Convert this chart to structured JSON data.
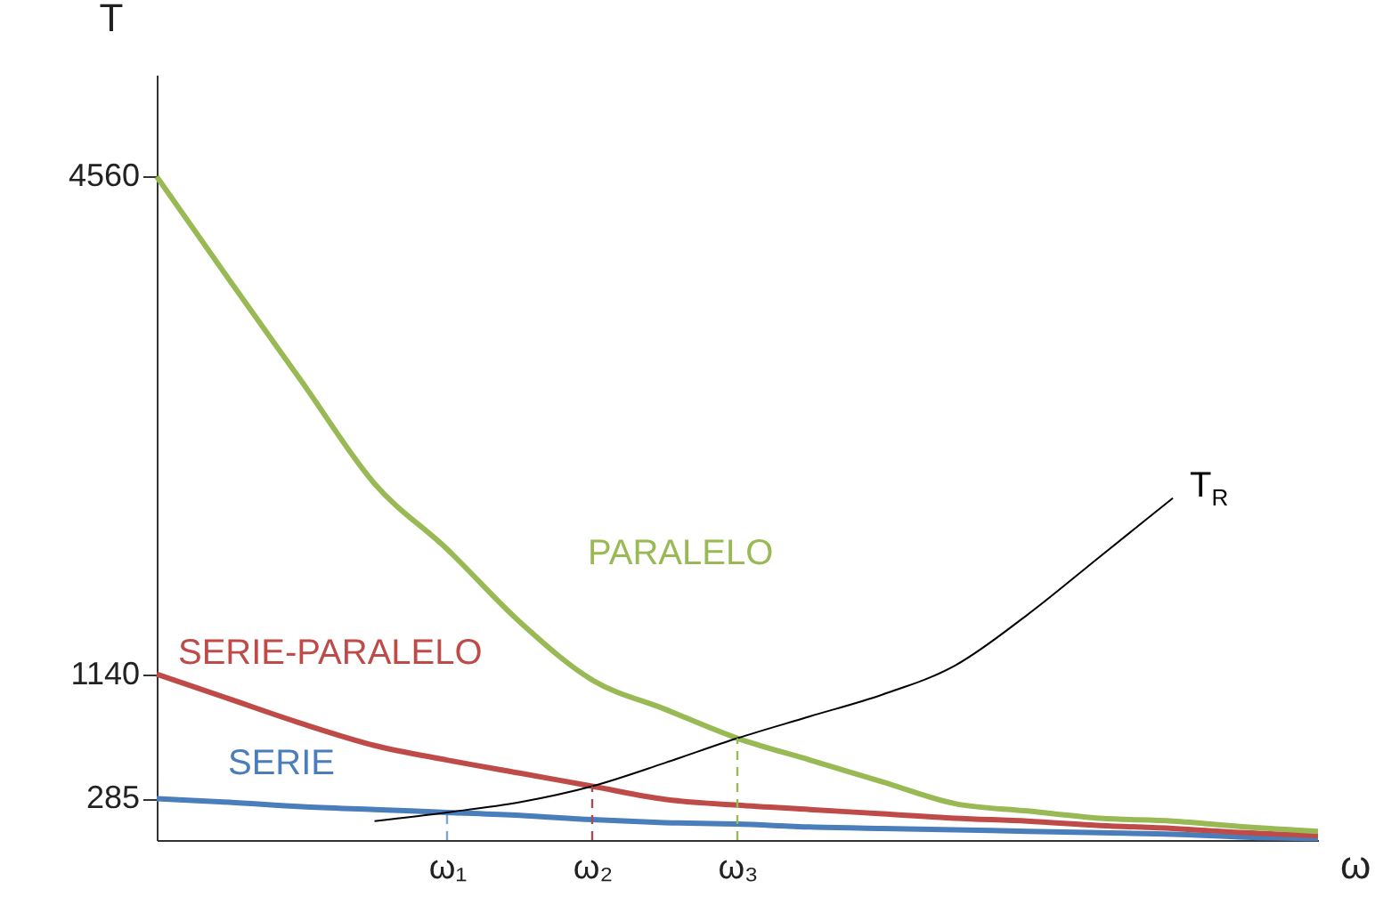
{
  "chart_data": {
    "type": "line",
    "xlabel": "ω",
    "ylabel": "T",
    "categories": [
      null,
      null,
      null,
      null,
      "ω₁",
      null,
      "ω₂",
      null,
      "ω₃",
      null,
      null,
      null,
      null,
      null,
      null,
      null,
      null
    ],
    "ylim": [
      0,
      5260
    ],
    "yticks": [
      285,
      1140,
      4560
    ],
    "grid": false,
    "legend": false,
    "marker": "none",
    "series": [
      {
        "name": "SERIE",
        "color": "#4a7ebb",
        "values": [
          285,
          260,
          230,
          210,
          190,
          170,
          140,
          120,
          110,
          90,
          80,
          70,
          60,
          50,
          40,
          20,
          10
        ]
      },
      {
        "name": "SERIE-PARALELO",
        "color": "#be4b48",
        "values": [
          1140,
          970,
          800,
          650,
          550,
          460,
          370,
          280,
          240,
          210,
          180,
          150,
          130,
          100,
          80,
          50,
          30
        ]
      },
      {
        "name": "PARALELO",
        "color": "#98b954",
        "values": [
          4560,
          3850,
          3150,
          2450,
          2000,
          1500,
          1100,
          900,
          700,
          550,
          400,
          250,
          200,
          150,
          130,
          90,
          60
        ]
      },
      {
        "name": "T$_{R}$",
        "color": "#000000",
        "values": [
          null,
          null,
          null,
          130,
          190,
          260,
          370,
          530,
          700,
          850,
          1000,
          1200,
          1550,
          1950,
          2350,
          null,
          null
        ]
      },
      {
        "line_style": "dashed",
        "color": "#7fa3d4",
        "x": [
          "ω₁",
          "ω₁"
        ],
        "values": [
          0,
          190
        ]
      },
      {
        "line_style": "dashed",
        "color": "#a0504e",
        "x": [
          "ω₂",
          "ω₂"
        ],
        "values": [
          0,
          370
        ]
      },
      {
        "line_style": "dashed",
        "color": "#98b954",
        "x": [
          "ω₃",
          "ω₃"
        ],
        "values": [
          0,
          700
        ]
      }
    ]
  }
}
